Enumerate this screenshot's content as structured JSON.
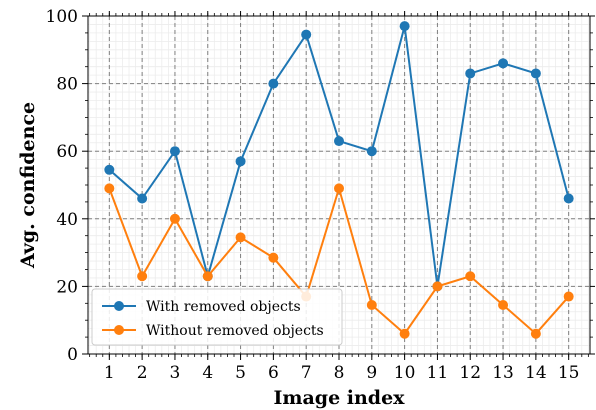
{
  "chart_data": {
    "type": "line",
    "title": "",
    "xlabel": "Image index",
    "ylabel": "Avg. confidence",
    "x": [
      1,
      2,
      3,
      4,
      5,
      6,
      7,
      8,
      9,
      10,
      11,
      12,
      13,
      14,
      15
    ],
    "xlim": [
      0.35,
      15.65
    ],
    "ylim": [
      0,
      100
    ],
    "yticks": [
      0,
      20,
      40,
      60,
      80,
      100
    ],
    "grid": true,
    "legend_position": "bottom-left",
    "series": [
      {
        "name": "With removed objects",
        "color": "#1f77b4",
        "values": [
          54.5,
          46,
          60,
          23,
          57,
          80,
          94.5,
          63,
          60,
          97,
          20,
          83,
          86,
          83,
          46
        ]
      },
      {
        "name": "Without removed objects",
        "color": "#ff7f0e",
        "values": [
          49,
          23,
          40,
          23,
          34.5,
          28.5,
          17,
          49,
          14.5,
          6,
          20,
          23,
          14.5,
          6,
          17
        ]
      }
    ]
  }
}
